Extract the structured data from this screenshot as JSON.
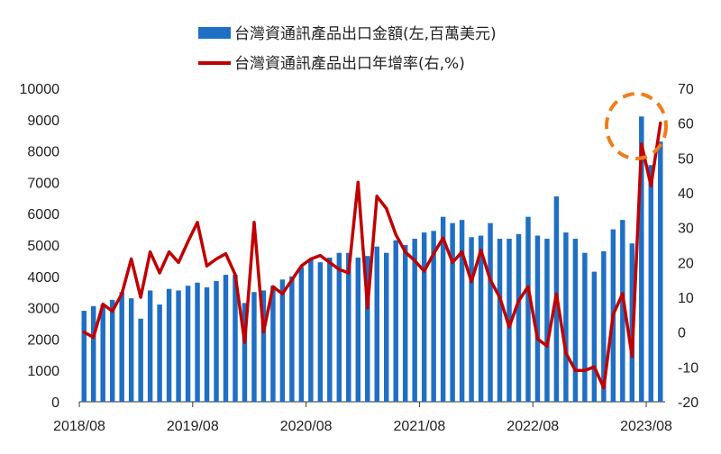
{
  "chart_data": {
    "type": "bar+line",
    "x_tick_labels": [
      "2018/08",
      "2019/08",
      "2020/08",
      "2021/08",
      "2022/08",
      "2023/08"
    ],
    "series": [
      {
        "name": "台灣資通訊產品出口金額(左,百萬美元)",
        "type": "bar",
        "axis": "left",
        "color": "#1f6fc4",
        "values": [
          2900,
          3050,
          3100,
          3250,
          3500,
          3300,
          2650,
          3550,
          3100,
          3600,
          3550,
          3700,
          3800,
          3650,
          3850,
          4050,
          4050,
          3150,
          3500,
          3550,
          3700,
          3900,
          4000,
          4300,
          4550,
          4450,
          4600,
          4750,
          4750,
          4600,
          4650,
          4950,
          4750,
          5150,
          5000,
          5200,
          5400,
          5450,
          5900,
          5700,
          5800,
          5250,
          5300,
          5700,
          5200,
          5200,
          5350,
          5900,
          5300,
          5200,
          6550,
          5400,
          5200,
          4750,
          4150,
          4800,
          5500,
          5800,
          5050,
          9100,
          7550,
          8300
        ]
      },
      {
        "name": "台灣資通訊產品出口年增率(右,%)",
        "type": "line",
        "axis": "right",
        "color": "#c00000",
        "values": [
          0,
          -1.5,
          8,
          6,
          11,
          21,
          10,
          23,
          17,
          23,
          20,
          26,
          31.5,
          19,
          21,
          22.5,
          16.5,
          -3,
          31.5,
          0,
          13,
          11,
          15,
          19,
          21,
          22,
          20,
          18,
          17,
          43,
          7,
          39,
          35.5,
          28,
          23,
          20.5,
          17.5,
          22.5,
          27,
          20,
          23,
          14.5,
          23.5,
          15,
          10,
          1.5,
          9,
          13,
          -2,
          -4,
          11,
          -6,
          -11,
          -11,
          -10,
          -16,
          5,
          11,
          -7,
          54,
          42,
          60
        ]
      }
    ],
    "y_left": {
      "min": 0,
      "max": 10000,
      "ticks": [
        0,
        1000,
        2000,
        3000,
        4000,
        5000,
        6000,
        7000,
        8000,
        9000,
        10000
      ]
    },
    "y_right": {
      "min": -20,
      "max": 70,
      "ticks": [
        -20,
        -10,
        0,
        10,
        20,
        30,
        40,
        50,
        60,
        70
      ]
    },
    "legend_position": "top-center",
    "annotation": "dashed orange circle highlighting latest peak"
  }
}
